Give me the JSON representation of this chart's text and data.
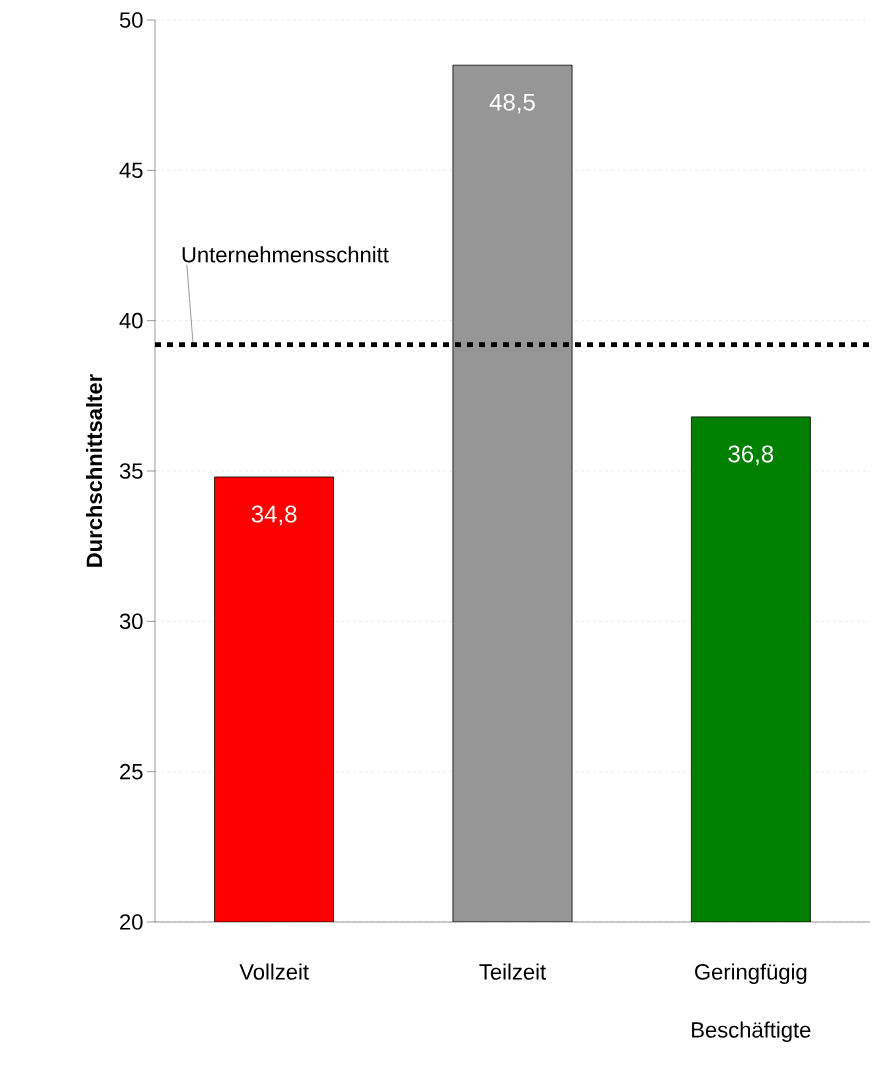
{
  "chart_data": {
    "type": "bar",
    "ylabel": "Durchschnittsalter",
    "categories": [
      "Vollzeit",
      "Teilzeit",
      "Geringfügig Beschäftigte"
    ],
    "values": [
      34.8,
      48.5,
      36.8
    ],
    "colors": [
      "#ff0000",
      "#969696",
      "#008000"
    ],
    "value_labels": [
      "34,8",
      "48,5",
      "36,8"
    ],
    "ylim": [
      20,
      50
    ],
    "yticks": [
      20,
      25,
      30,
      35,
      40,
      45,
      50
    ],
    "grid": "y",
    "ref_lines": [
      {
        "axis": "y",
        "value": 39.2,
        "label": "Unternehmensschnitt",
        "color": "#000000",
        "line_style": "dotted"
      }
    ]
  }
}
